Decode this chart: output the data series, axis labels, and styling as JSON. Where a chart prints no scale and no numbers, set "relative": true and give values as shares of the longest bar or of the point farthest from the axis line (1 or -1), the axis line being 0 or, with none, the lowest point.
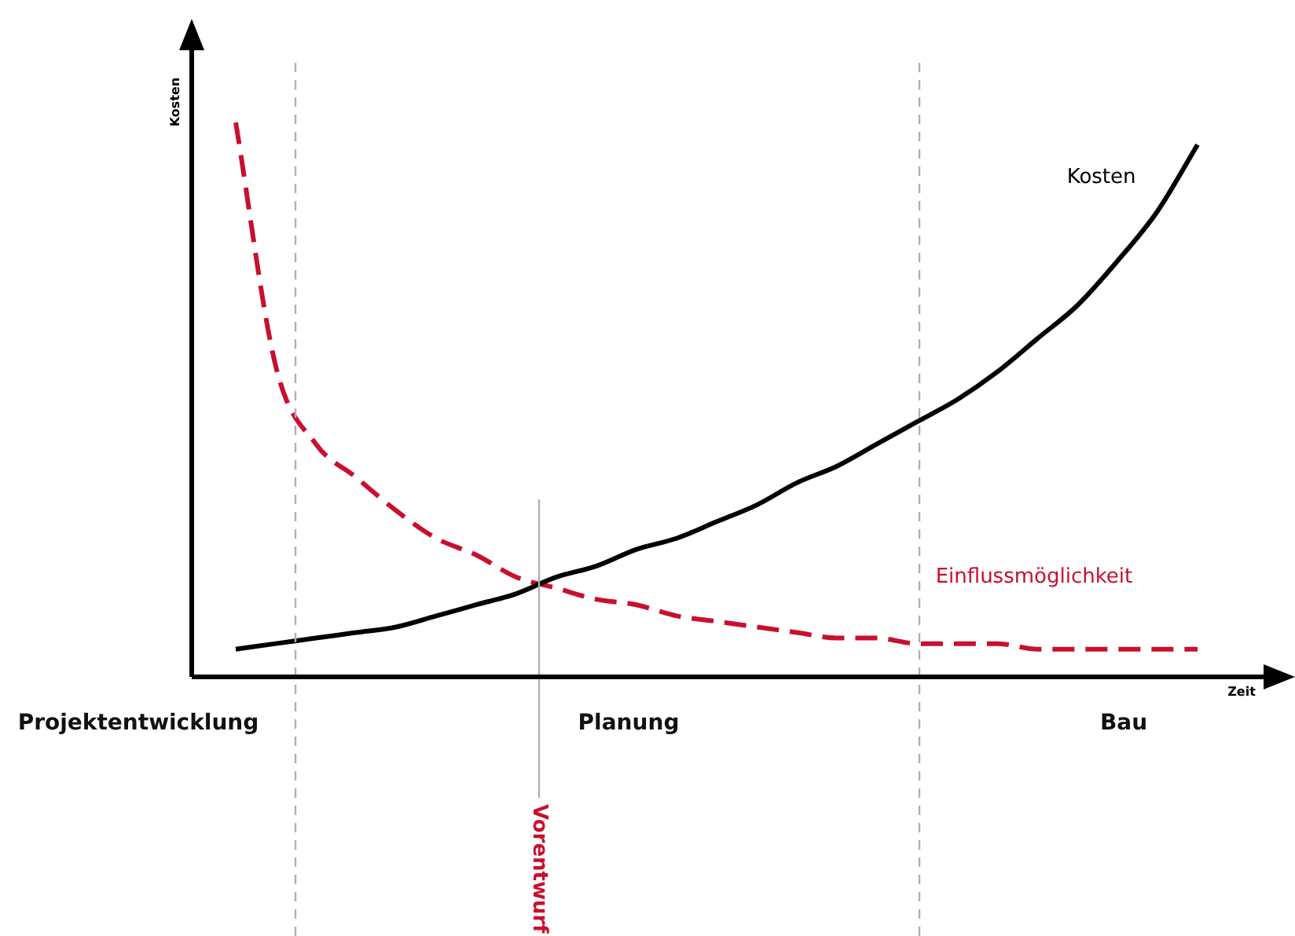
{
  "chart_data": {
    "type": "line",
    "relative": true,
    "xlabel": "Zeit",
    "ylabel": "Kosten",
    "categories": [
      null,
      null,
      null,
      null,
      null,
      null,
      null,
      null,
      null,
      null,
      null,
      null,
      null,
      null,
      null,
      null,
      null,
      null,
      null,
      null,
      null,
      null,
      null,
      null,
      null
    ],
    "series": [
      {
        "name": "Kosten",
        "color": "#000000",
        "line_style": "solid",
        "values": [
          0.05,
          0.06,
          0.07,
          0.08,
          0.09,
          0.11,
          0.13,
          0.15,
          0.18,
          0.2,
          0.23,
          0.25,
          0.28,
          0.31,
          0.35,
          0.38,
          0.42,
          0.46,
          0.5,
          0.55,
          0.61,
          0.67,
          0.75,
          0.84,
          0.96
        ]
      },
      {
        "name": "Einflussmöglichkeit",
        "color": "#c8102e",
        "line_style": "dashed",
        "values": [
          1.0,
          0.56,
          0.42,
          0.36,
          0.3,
          0.25,
          0.22,
          0.18,
          0.16,
          0.14,
          0.13,
          0.11,
          0.1,
          0.09,
          0.08,
          0.07,
          0.07,
          0.06,
          0.06,
          0.06,
          0.05,
          0.05,
          0.05,
          0.05,
          0.05
        ]
      }
    ],
    "annotations": [
      "Projektentwicklung",
      "Planung",
      "Bau",
      "Vorentwurf"
    ],
    "grid": false,
    "legend": false,
    "marker": "none",
    "tick_labels": false
  }
}
